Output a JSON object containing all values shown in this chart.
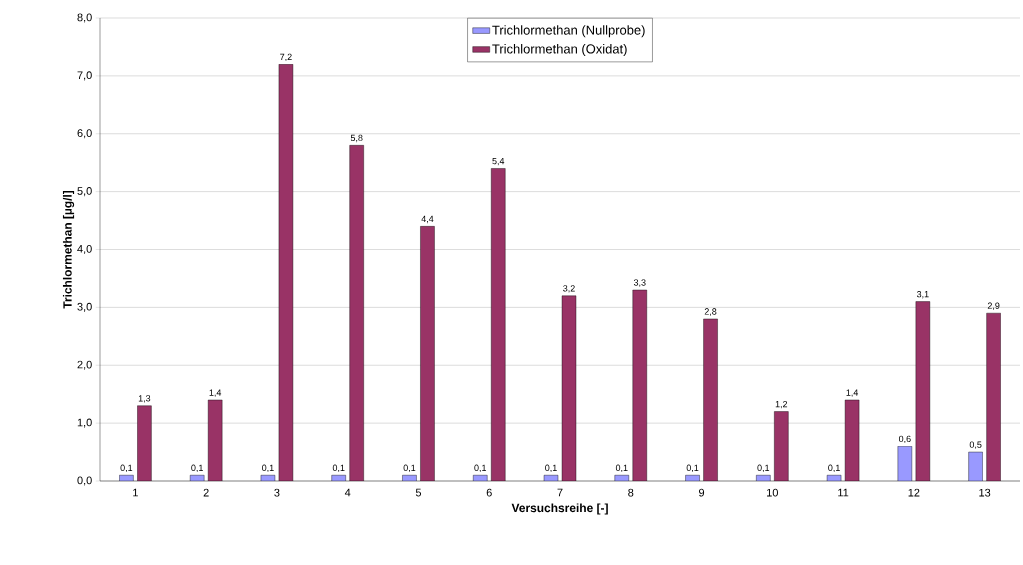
{
  "chart_data": {
    "type": "bar",
    "xlabel": "Versuchsreihe [-]",
    "ylabel": "Trichlormethan [µg/l]",
    "categories": [
      "1",
      "2",
      "3",
      "4",
      "5",
      "6",
      "7",
      "8",
      "9",
      "10",
      "11",
      "12",
      "13"
    ],
    "series": [
      {
        "name": "Trichlormethan (Nullprobe)",
        "color": "#9999ff",
        "values": [
          0.1,
          0.1,
          0.1,
          0.1,
          0.1,
          0.1,
          0.1,
          0.1,
          0.1,
          0.1,
          0.1,
          0.6,
          0.5
        ],
        "value_labels": [
          "0,1",
          "0,1",
          "0,1",
          "0,1",
          "0,1",
          "0,1",
          "0,1",
          "0,1",
          "0,1",
          "0,1",
          "0,1",
          "0,6",
          "0,5"
        ]
      },
      {
        "name": "Trichlormethan (Oxidat)",
        "color": "#993366",
        "values": [
          1.3,
          1.4,
          7.2,
          5.8,
          4.4,
          5.4,
          3.2,
          3.3,
          2.8,
          1.2,
          1.4,
          3.1,
          2.9
        ],
        "value_labels": [
          "1,3",
          "1,4",
          "7,2",
          "5,8",
          "4,4",
          "5,4",
          "3,2",
          "3,3",
          "2,8",
          "1,2",
          "1,4",
          "3,1",
          "2,9"
        ]
      }
    ],
    "ylim": [
      0,
      8
    ],
    "yticks": [
      {
        "value": 0,
        "label": "0,0"
      },
      {
        "value": 1,
        "label": "1,0"
      },
      {
        "value": 2,
        "label": "2,0"
      },
      {
        "value": 3,
        "label": "3,0"
      },
      {
        "value": 4,
        "label": "4,0"
      },
      {
        "value": 5,
        "label": "5,0"
      },
      {
        "value": 6,
        "label": "6,0"
      },
      {
        "value": 7,
        "label": "7,0"
      },
      {
        "value": 8,
        "label": "8,0"
      }
    ],
    "grid": "y",
    "legend": "top"
  }
}
